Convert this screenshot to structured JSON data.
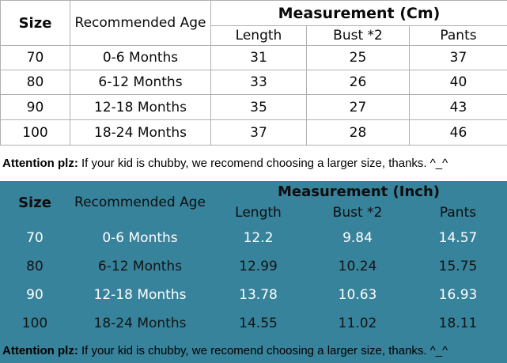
{
  "colors": {
    "teal-bg": "#37839B",
    "grid": "#b0b0b0",
    "light-row": "#ffffff"
  },
  "cm_table": {
    "header": {
      "size": "Size",
      "age": "Recommended Age",
      "group": "Measurement (Cm)",
      "cols": [
        "Length",
        "Bust *2",
        "Pants"
      ]
    },
    "rows": [
      [
        "70",
        "0-6 Months",
        "31",
        "25",
        "37"
      ],
      [
        "80",
        "6-12 Months",
        "33",
        "26",
        "40"
      ],
      [
        "90",
        "12-18 Months",
        "35",
        "27",
        "43"
      ],
      [
        "100",
        "18-24 Months",
        "37",
        "28",
        "46"
      ]
    ],
    "note": {
      "bold": "Attention plz:",
      "text": " If your kid is chubby, we recomend choosing a larger size, thanks. ^_^"
    }
  },
  "inch_table": {
    "header": {
      "size": "Size",
      "age": "Recommended Age",
      "group": "Measurement (Inch)",
      "cols": [
        "Length",
        "Bust *2",
        "Pants"
      ]
    },
    "rows": [
      [
        "70",
        "0-6 Months",
        "12.2",
        "9.84",
        "14.57"
      ],
      [
        "80",
        "6-12 Months",
        "12.99",
        "10.24",
        "15.75"
      ],
      [
        "90",
        "12-18 Months",
        "13.78",
        "10.63",
        "16.93"
      ],
      [
        "100",
        "18-24 Months",
        "14.55",
        "11.02",
        "18.11"
      ]
    ],
    "note": {
      "bold": "Attention plz:",
      "text": " If your kid is chubby, we recomend choosing a larger size, thanks. ^_^"
    }
  },
  "chart_data": [
    {
      "type": "table",
      "title": "Measurement (Cm)",
      "columns": [
        "Size",
        "Recommended Age",
        "Length",
        "Bust *2",
        "Pants"
      ],
      "rows": [
        [
          70,
          "0-6 Months",
          31,
          25,
          37
        ],
        [
          80,
          "6-12 Months",
          33,
          26,
          40
        ],
        [
          90,
          "12-18 Months",
          35,
          27,
          43
        ],
        [
          100,
          "18-24 Months",
          37,
          28,
          46
        ]
      ],
      "note": "Attention plz: If your kid is chubby, we recomend choosing a larger size, thanks. ^_^"
    },
    {
      "type": "table",
      "title": "Measurement (Inch)",
      "columns": [
        "Size",
        "Recommended Age",
        "Length",
        "Bust *2",
        "Pants"
      ],
      "rows": [
        [
          70,
          "0-6 Months",
          12.2,
          9.84,
          14.57
        ],
        [
          80,
          "6-12 Months",
          12.99,
          10.24,
          15.75
        ],
        [
          90,
          "12-18 Months",
          13.78,
          10.63,
          16.93
        ],
        [
          100,
          "18-24 Months",
          14.55,
          11.02,
          18.11
        ]
      ],
      "note": "Attention plz: If your kid is chubby, we recomend choosing a larger size, thanks. ^_^"
    }
  ]
}
